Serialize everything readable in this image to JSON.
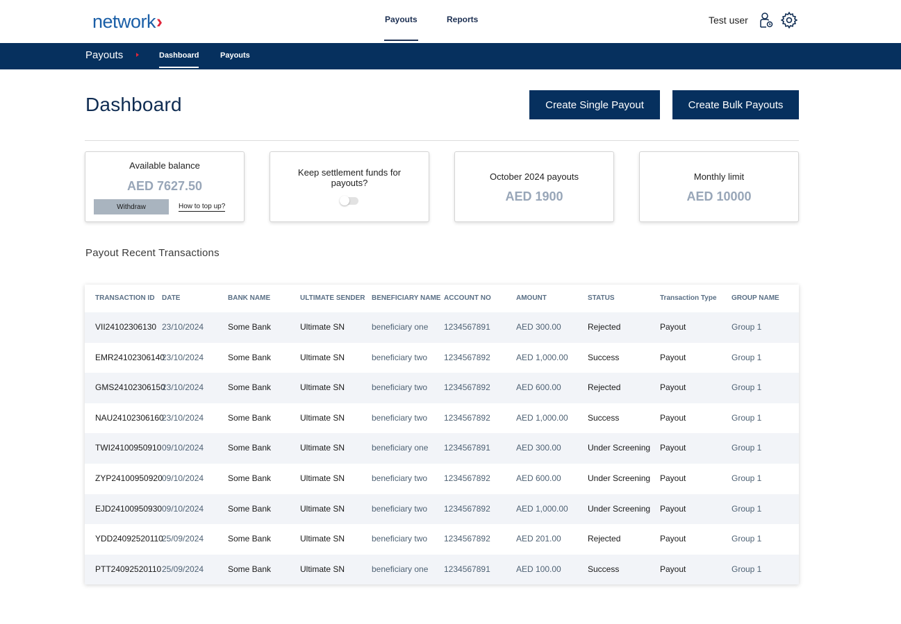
{
  "header": {
    "logo_text": "network",
    "nav": [
      "Payouts",
      "Reports"
    ],
    "user_name": "Test user",
    "icons": [
      "user-settings-icon",
      "gear-icon"
    ]
  },
  "subnav": {
    "title": "Payouts",
    "links": [
      "Dashboard",
      "Payouts"
    ]
  },
  "page": {
    "title": "Dashboard",
    "create_single_label": "Create Single Payout",
    "create_bulk_label": "Create Bulk Payouts"
  },
  "cards": {
    "balance": {
      "label": "Available balance",
      "value": "AED 7627.50",
      "withdraw_label": "Withdraw",
      "topup_label": "How to top up?"
    },
    "settlement": {
      "label": "Keep settlement funds for payouts?",
      "toggle_on": false
    },
    "monthly_payouts": {
      "label": "October 2024 payouts",
      "value": "AED 1900"
    },
    "limit": {
      "label": "Monthly limit",
      "value": "AED 10000"
    }
  },
  "transactions": {
    "title": "Payout Recent Transactions",
    "columns": [
      "TRANSACTION ID",
      "DATE",
      "BANK NAME",
      "ULTIMATE SENDER",
      "BENEFICIARY NAME",
      "ACCOUNT NO",
      "AMOUNT",
      "STATUS",
      "Transaction Type",
      "GROUP NAME"
    ],
    "rows": [
      [
        "VII24102306130",
        "23/10/2024",
        "Some Bank",
        "Ultimate SN",
        "beneficiary one",
        "1234567891",
        "AED 300.00",
        "Rejected",
        "Payout",
        "Group 1"
      ],
      [
        "EMR24102306140",
        "23/10/2024",
        "Some Bank",
        "Ultimate SN",
        "beneficiary two",
        "1234567892",
        "AED 1,000.00",
        "Success",
        "Payout",
        "Group 1"
      ],
      [
        "GMS24102306150",
        "23/10/2024",
        "Some Bank",
        "Ultimate SN",
        "beneficiary two",
        "1234567892",
        "AED 600.00",
        "Rejected",
        "Payout",
        "Group 1"
      ],
      [
        "NAU24102306160",
        "23/10/2024",
        "Some Bank",
        "Ultimate SN",
        "beneficiary two",
        "1234567892",
        "AED 1,000.00",
        "Success",
        "Payout",
        "Group 1"
      ],
      [
        "TWI24100950910",
        "09/10/2024",
        "Some Bank",
        "Ultimate SN",
        "beneficiary one",
        "1234567891",
        "AED 300.00",
        "Under Screening",
        "Payout",
        "Group 1"
      ],
      [
        "ZYP24100950920",
        "09/10/2024",
        "Some Bank",
        "Ultimate SN",
        "beneficiary two",
        "1234567892",
        "AED 600.00",
        "Under Screening",
        "Payout",
        "Group 1"
      ],
      [
        "EJD24100950930",
        "09/10/2024",
        "Some Bank",
        "Ultimate SN",
        "beneficiary two",
        "1234567892",
        "AED 1,000.00",
        "Under Screening",
        "Payout",
        "Group 1"
      ],
      [
        "YDD24092520110",
        "25/09/2024",
        "Some Bank",
        "Ultimate SN",
        "beneficiary two",
        "1234567892",
        "AED 201.00",
        "Rejected",
        "Payout",
        "Group 1"
      ],
      [
        "PTT24092520110",
        "25/09/2024",
        "Some Bank",
        "Ultimate SN",
        "beneficiary one",
        "1234567891",
        "AED 100.00",
        "Success",
        "Payout",
        "Group 1"
      ]
    ]
  }
}
